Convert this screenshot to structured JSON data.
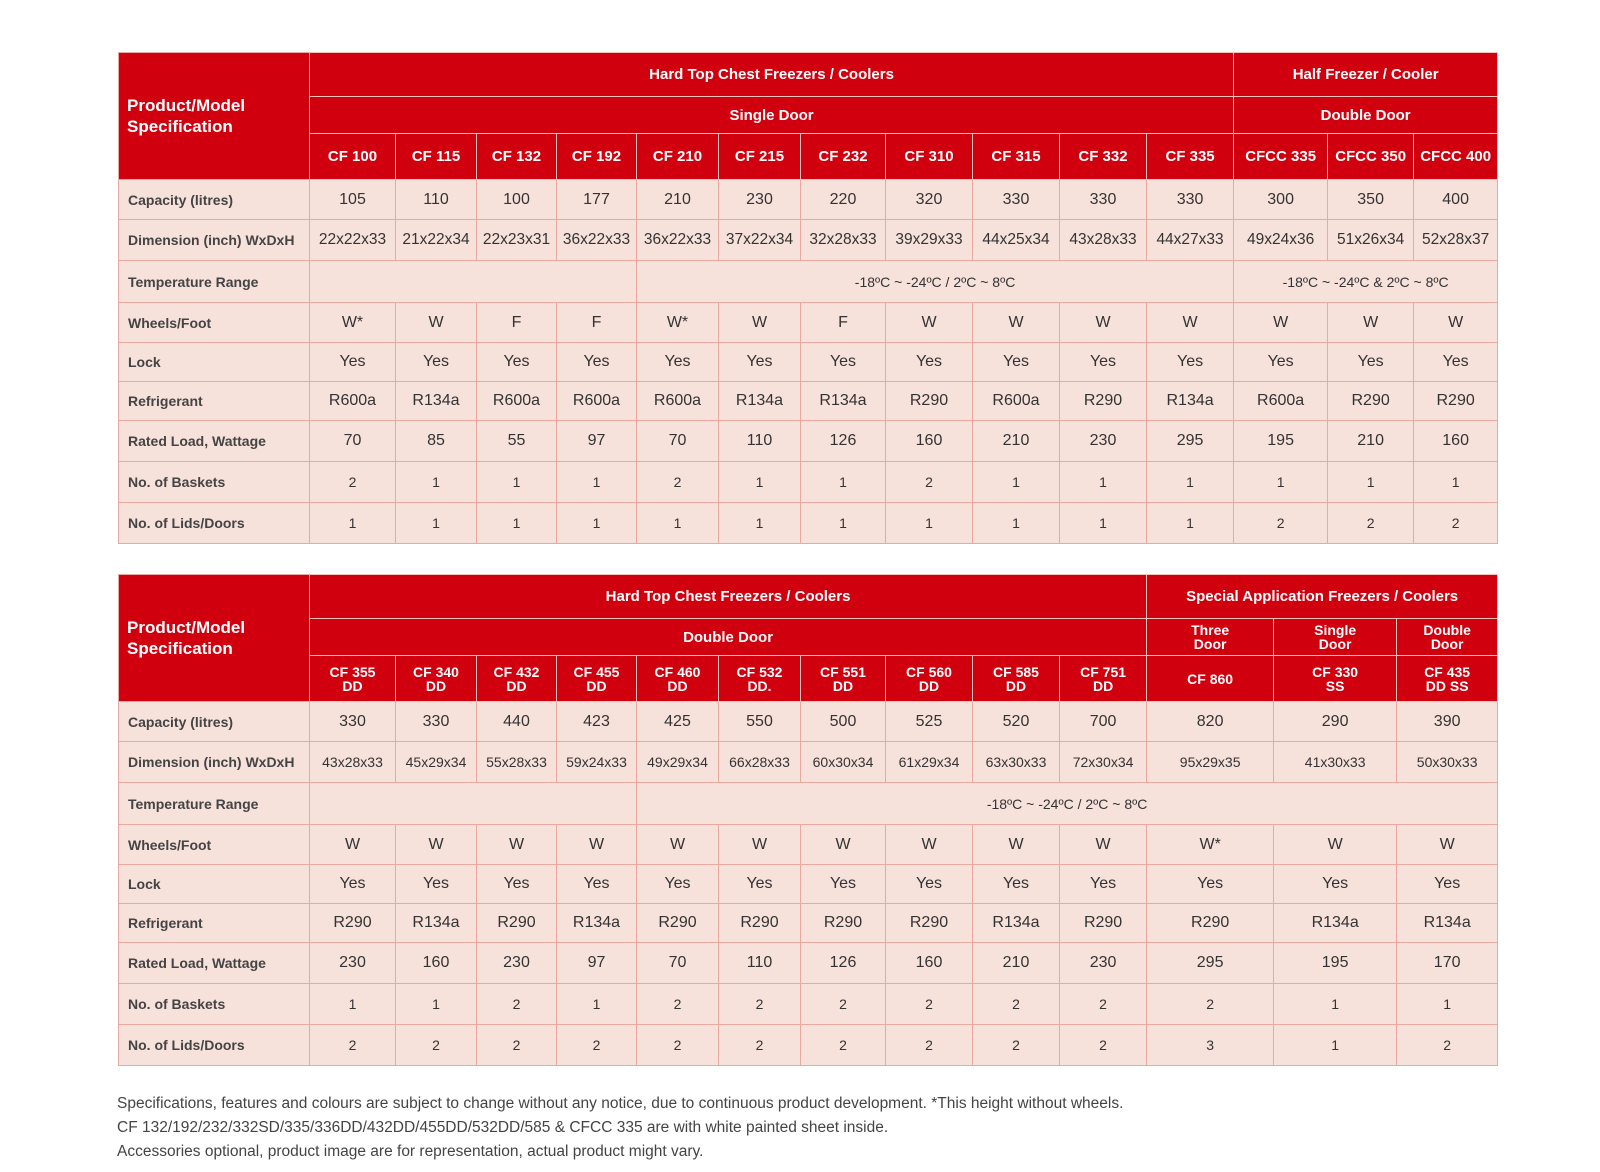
{
  "table1": {
    "corner": "Product/Model Specification",
    "group_left": "Hard Top Chest Freezers / Coolers",
    "group_right": "Half Freezer / Cooler",
    "sub_left": "Single Door",
    "sub_right": "Double Door",
    "models": [
      "CF 100",
      "CF 115",
      "CF 132",
      "CF 192",
      "CF 210",
      "CF 215",
      "CF 232",
      "CF 310",
      "CF 315",
      "CF 332",
      "CF 335",
      "CFCC 335",
      "CFCC 350",
      "CFCC 400"
    ],
    "capacity": [
      "105",
      "110",
      "100",
      "177",
      "210",
      "230",
      "220",
      "320",
      "330",
      "330",
      "330",
      "300",
      "350",
      "400"
    ],
    "dimension": [
      "22x22x33",
      "21x22x34",
      "22x23x31",
      "36x22x33",
      "36x22x33",
      "37x22x34",
      "32x28x33",
      "39x29x33",
      "44x25x34",
      "43x28x33",
      "44x27x33",
      "49x24x36",
      "51x26x34",
      "52x28x37"
    ],
    "temp_single": "-18ºC ~ -24ºC / 2ºC ~ 8ºC",
    "temp_double": "-18ºC ~ -24ºC & 2ºC ~ 8ºC",
    "wheels": [
      "W*",
      "W",
      "F",
      "F",
      "W*",
      "W",
      "F",
      "W",
      "W",
      "W",
      "W",
      "W",
      "W",
      "W"
    ],
    "lock": [
      "Yes",
      "Yes",
      "Yes",
      "Yes",
      "Yes",
      "Yes",
      "Yes",
      "Yes",
      "Yes",
      "Yes",
      "Yes",
      "Yes",
      "Yes",
      "Yes"
    ],
    "refrigerant": [
      "R600a",
      "R134a",
      "R600a",
      "R600a",
      "R600a",
      "R134a",
      "R134a",
      "R290",
      "R600a",
      "R290",
      "R134a",
      "R600a",
      "R290",
      "R290"
    ],
    "load": [
      "70",
      "85",
      "55",
      "97",
      "70",
      "110",
      "126",
      "160",
      "210",
      "230",
      "295",
      "195",
      "210",
      "160"
    ],
    "baskets": [
      "2",
      "1",
      "1",
      "1",
      "2",
      "1",
      "1",
      "2",
      "1",
      "1",
      "1",
      "1",
      "1",
      "1"
    ],
    "lids": [
      "1",
      "1",
      "1",
      "1",
      "1",
      "1",
      "1",
      "1",
      "1",
      "1",
      "1",
      "2",
      "2",
      "2"
    ]
  },
  "labels": {
    "capacity": "Capacity (litres)",
    "dimension": "Dimension (inch) WxDxH",
    "temp": "Temperature Range",
    "wheels": "Wheels/Foot",
    "lock": "Lock",
    "refrigerant": "Refrigerant",
    "load": "Rated Load, Wattage",
    "baskets": "No. of Baskets",
    "lids": "No. of Lids/Doors"
  },
  "table2": {
    "corner": "Product/Model Specification",
    "group_left": "Hard Top Chest Freezers / Coolers",
    "group_right": "Special Application Freezers / Coolers",
    "sub_left": "Double Door",
    "sub_right": [
      [
        "Three",
        "Door"
      ],
      [
        "Single",
        "Door"
      ],
      [
        "Double",
        "Door"
      ]
    ],
    "models": [
      [
        "CF 355",
        "DD"
      ],
      [
        "CF 340",
        "DD"
      ],
      [
        "CF 432",
        "DD"
      ],
      [
        "CF 455",
        "DD"
      ],
      [
        "CF 460",
        "DD"
      ],
      [
        "CF 532",
        "DD."
      ],
      [
        "CF 551",
        "DD"
      ],
      [
        "CF 560",
        "DD"
      ],
      [
        "CF 585",
        "DD"
      ],
      [
        "CF 751",
        "DD"
      ],
      [
        "CF 860",
        ""
      ],
      [
        "CF 330",
        "SS"
      ],
      [
        "CF 435",
        "DD SS"
      ]
    ],
    "capacity": [
      "330",
      "330",
      "440",
      "423",
      "425",
      "550",
      "500",
      "525",
      "520",
      "700",
      "820",
      "290",
      "390"
    ],
    "dimension": [
      "43x28x33",
      "45x29x34",
      "55x28x33",
      "59x24x33",
      "49x29x34",
      "66x28x33",
      "60x30x34",
      "61x29x34",
      "63x30x33",
      "72x30x34",
      "95x29x35",
      "41x30x33",
      "50x30x33"
    ],
    "temp": "-18ºC ~ -24ºC / 2ºC ~ 8ºC",
    "wheels": [
      "W",
      "W",
      "W",
      "W",
      "W",
      "W",
      "W",
      "W",
      "W",
      "W",
      "W*",
      "W",
      "W"
    ],
    "lock": [
      "Yes",
      "Yes",
      "Yes",
      "Yes",
      "Yes",
      "Yes",
      "Yes",
      "Yes",
      "Yes",
      "Yes",
      "Yes",
      "Yes",
      "Yes"
    ],
    "refrigerant": [
      "R290",
      "R134a",
      "R290",
      "R134a",
      "R290",
      "R290",
      "R290",
      "R290",
      "R134a",
      "R290",
      "R290",
      "R134a",
      "R134a"
    ],
    "load": [
      "230",
      "160",
      "230",
      "97",
      "70",
      "110",
      "126",
      "160",
      "210",
      "230",
      "295",
      "195",
      "170"
    ],
    "baskets": [
      "1",
      "1",
      "2",
      "1",
      "2",
      "2",
      "2",
      "2",
      "2",
      "2",
      "2",
      "1",
      "1"
    ],
    "lids": [
      "2",
      "2",
      "2",
      "2",
      "2",
      "2",
      "2",
      "2",
      "2",
      "2",
      "3",
      "1",
      "2"
    ]
  },
  "notes": [
    "Specifications, features and colours are subject to change without any notice, due to continuous product development. *This height without wheels.",
    "CF 132/192/232/332SD/335/336DD/432DD/455DD/532DD/585 & CFCC 335 are with white painted sheet inside.",
    "Accessories optional, product image are for representation, actual product might vary."
  ]
}
